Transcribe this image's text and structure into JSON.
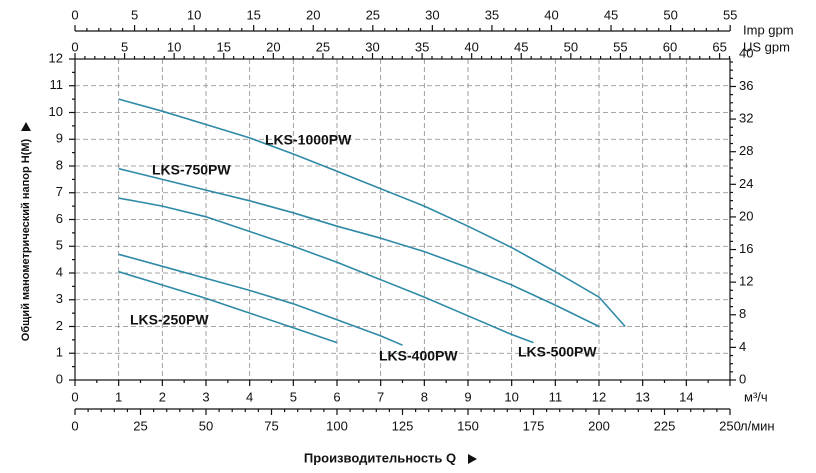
{
  "chart_data": {
    "type": "line",
    "xlabel": "Производительность Q",
    "ylabel": "Общий манометрический напор H(M)",
    "x_unit": "м³/ч",
    "x_lpm_unit": "л/мин",
    "top_imp_unit": "Imp gpm",
    "top_us_unit": "US gpm",
    "xlim": [
      0,
      15
    ],
    "ylim": [
      0,
      12
    ],
    "x_ticks": [
      "0",
      "1",
      "2",
      "3",
      "4",
      "5",
      "6",
      "7",
      "8",
      "9",
      "10",
      "11",
      "12",
      "13",
      "14"
    ],
    "lpm_ticks": [
      "0",
      "25",
      "50",
      "75",
      "100",
      "125",
      "150",
      "175",
      "200",
      "225",
      "250"
    ],
    "imp_gpm_ticks": [
      "0",
      "5",
      "10",
      "15",
      "20",
      "25",
      "30",
      "35",
      "40",
      "45",
      "50",
      "55"
    ],
    "us_gpm_ticks": [
      "0",
      "5",
      "10",
      "15",
      "20",
      "25",
      "30",
      "35",
      "40",
      "45",
      "50",
      "55",
      "60",
      "65"
    ],
    "y_ticks": [
      "0",
      "1",
      "2",
      "3",
      "4",
      "5",
      "6",
      "7",
      "8",
      "9",
      "10",
      "11",
      "12"
    ],
    "y_ft_ticks": [
      "0",
      "4",
      "8",
      "12",
      "16",
      "20",
      "24",
      "28",
      "32",
      "36",
      "40"
    ],
    "grid": true,
    "line_color": "#2e8aa6",
    "series": [
      {
        "name": "LKS-1000PW",
        "x": [
          1,
          2,
          3,
          4,
          5,
          6,
          7,
          8,
          9,
          10,
          11,
          12,
          12.6
        ],
        "y": [
          10.5,
          10.05,
          9.55,
          9.05,
          8.45,
          7.8,
          7.15,
          6.5,
          5.75,
          4.95,
          4.05,
          3.1,
          2.0
        ]
      },
      {
        "name": "LKS-750PW",
        "x": [
          1,
          2,
          3,
          4,
          5,
          6,
          7,
          8,
          9,
          10,
          11,
          12
        ],
        "y": [
          7.9,
          7.5,
          7.1,
          6.7,
          6.25,
          5.75,
          5.3,
          4.8,
          4.2,
          3.55,
          2.8,
          2.0
        ]
      },
      {
        "name": "LKS-500PW",
        "x": [
          1,
          2,
          3,
          4,
          5,
          6,
          7,
          8,
          9,
          10,
          10.5
        ],
        "y": [
          6.8,
          6.5,
          6.1,
          5.55,
          5.0,
          4.4,
          3.75,
          3.1,
          2.4,
          1.7,
          1.4
        ]
      },
      {
        "name": "LKS-400PW",
        "x": [
          1,
          2,
          3,
          4,
          5,
          6,
          7,
          7.5
        ],
        "y": [
          4.7,
          4.25,
          3.8,
          3.35,
          2.85,
          2.25,
          1.65,
          1.3
        ]
      },
      {
        "name": "LKS-250PW",
        "x": [
          1,
          2,
          3,
          4,
          5,
          6
        ],
        "y": [
          4.05,
          3.55,
          3.05,
          2.5,
          1.95,
          1.4
        ]
      }
    ]
  }
}
